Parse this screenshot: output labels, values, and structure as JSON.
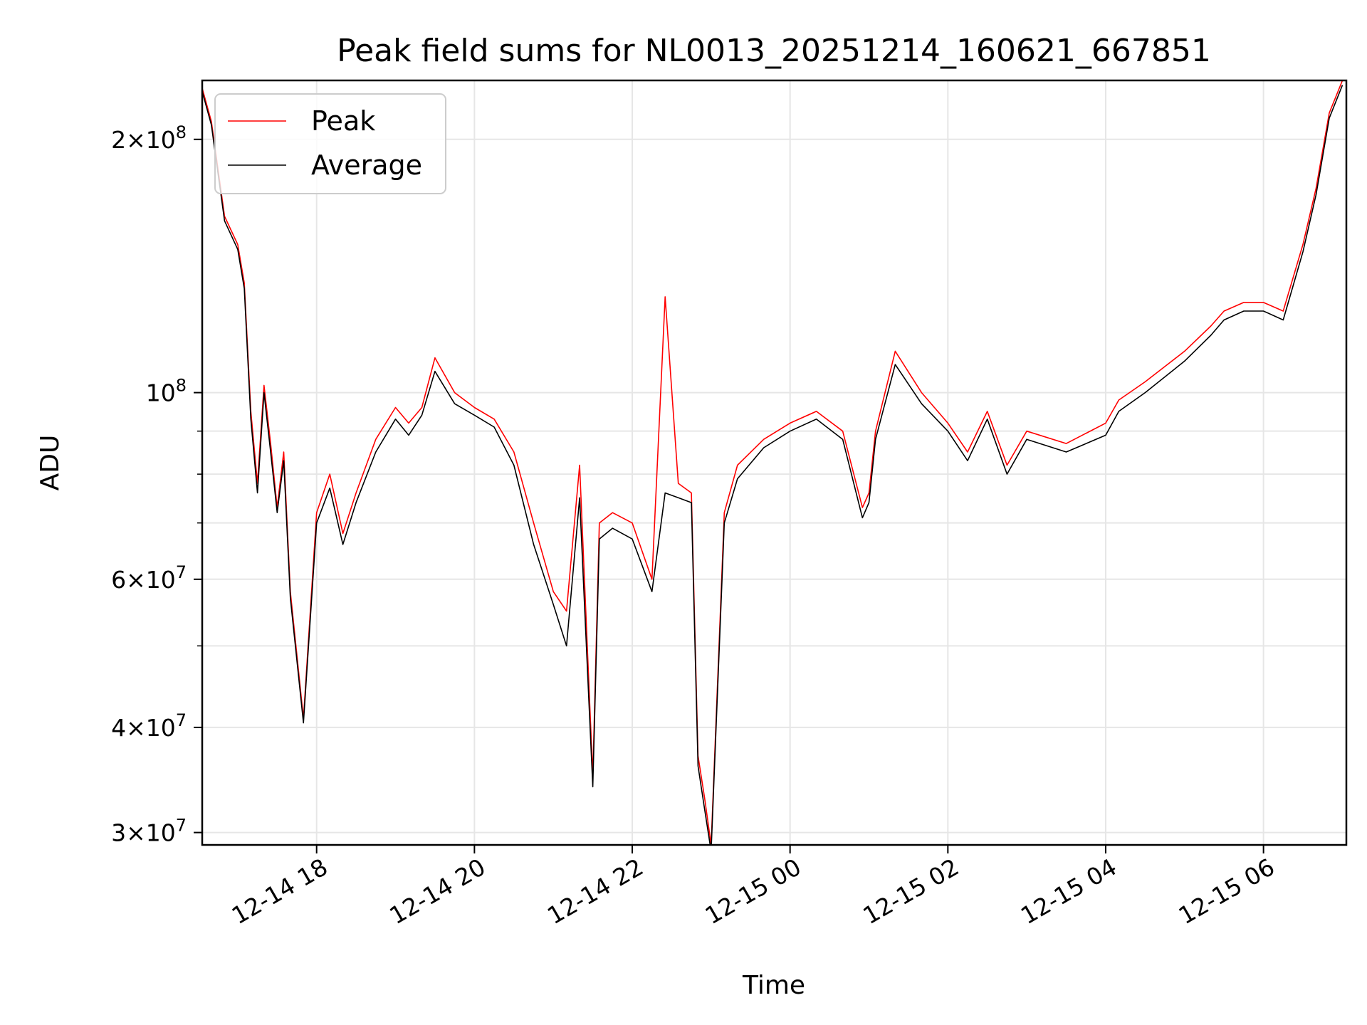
{
  "chart_data": {
    "type": "line",
    "title": "Peak field sums for NL0013_20251214_160621_667851",
    "xlabel": "Time",
    "ylabel": "ADU",
    "yscale": "log",
    "grid": true,
    "legend_position": "top-left",
    "xlim": [
      "2025-12-14 16:33",
      "2025-12-15 07:03"
    ],
    "ylim": [
      29000000,
      235000000
    ],
    "x_ticks": [
      "12-14 18",
      "12-14 20",
      "12-14 22",
      "12-15 00",
      "12-15 02",
      "12-15 04",
      "12-15 06"
    ],
    "x_tick_values": [
      "2025-12-14 18:00",
      "2025-12-14 20:00",
      "2025-12-14 22:00",
      "2025-12-15 00:00",
      "2025-12-15 02:00",
      "2025-12-15 04:00",
      "2025-12-15 06:00"
    ],
    "y_ticks": [
      {
        "value": 30000000,
        "mantissa": "3",
        "exp": "7"
      },
      {
        "value": 40000000,
        "mantissa": "4",
        "exp": "7"
      },
      {
        "value": 60000000,
        "mantissa": "6",
        "exp": "7"
      },
      {
        "value": 100000000,
        "mantissa": "",
        "exp": "8"
      },
      {
        "value": 200000000,
        "mantissa": "2",
        "exp": "8"
      }
    ],
    "y_minor_ticks": [
      50000000,
      70000000,
      80000000,
      90000000
    ],
    "x": [
      "2025-12-14 16:33",
      "2025-12-14 16:40",
      "2025-12-14 16:50",
      "2025-12-14 17:00",
      "2025-12-14 17:05",
      "2025-12-14 17:10",
      "2025-12-14 17:15",
      "2025-12-14 17:20",
      "2025-12-14 17:25",
      "2025-12-14 17:30",
      "2025-12-14 17:35",
      "2025-12-14 17:40",
      "2025-12-14 17:50",
      "2025-12-14 18:00",
      "2025-12-14 18:10",
      "2025-12-14 18:20",
      "2025-12-14 18:30",
      "2025-12-14 18:45",
      "2025-12-14 19:00",
      "2025-12-14 19:10",
      "2025-12-14 19:20",
      "2025-12-14 19:30",
      "2025-12-14 19:45",
      "2025-12-14 20:00",
      "2025-12-14 20:15",
      "2025-12-14 20:30",
      "2025-12-14 20:45",
      "2025-12-14 21:00",
      "2025-12-14 21:10",
      "2025-12-14 21:20",
      "2025-12-14 21:30",
      "2025-12-14 21:35",
      "2025-12-14 21:45",
      "2025-12-14 22:00",
      "2025-12-14 22:15",
      "2025-12-14 22:25",
      "2025-12-14 22:35",
      "2025-12-14 22:45",
      "2025-12-14 22:50",
      "2025-12-14 22:55",
      "2025-12-14 23:00",
      "2025-12-14 23:10",
      "2025-12-14 23:20",
      "2025-12-14 23:40",
      "2025-12-15 00:00",
      "2025-12-15 00:20",
      "2025-12-15 00:40",
      "2025-12-15 00:55",
      "2025-12-15 01:00",
      "2025-12-15 01:05",
      "2025-12-15 01:20",
      "2025-12-15 01:40",
      "2025-12-15 02:00",
      "2025-12-15 02:15",
      "2025-12-15 02:30",
      "2025-12-15 02:45",
      "2025-12-15 03:00",
      "2025-12-15 03:30",
      "2025-12-15 04:00",
      "2025-12-15 04:10",
      "2025-12-15 04:30",
      "2025-12-15 05:00",
      "2025-12-15 05:20",
      "2025-12-15 05:30",
      "2025-12-15 05:45",
      "2025-12-15 06:00",
      "2025-12-15 06:15",
      "2025-12-15 06:30",
      "2025-12-15 06:40",
      "2025-12-15 06:50",
      "2025-12-15 07:00"
    ],
    "series": [
      {
        "name": "Peak",
        "color": "#ff0000",
        "values": [
          230000000,
          210000000,
          162000000,
          150000000,
          135000000,
          95000000,
          78000000,
          102000000,
          87000000,
          73000000,
          85000000,
          58000000,
          41000000,
          72000000,
          80000000,
          68000000,
          76000000,
          88000000,
          96000000,
          92000000,
          96000000,
          110000000,
          100000000,
          96000000,
          93000000,
          85000000,
          70000000,
          58000000,
          55000000,
          82000000,
          35000000,
          70000000,
          72000000,
          70000000,
          60000000,
          130000000,
          78000000,
          76000000,
          37000000,
          33000000,
          29000000,
          72000000,
          82000000,
          88000000,
          92000000,
          95000000,
          90000000,
          73000000,
          76000000,
          90000000,
          112000000,
          100000000,
          92000000,
          85000000,
          95000000,
          82000000,
          90000000,
          87000000,
          92000000,
          98000000,
          103000000,
          112000000,
          120000000,
          125000000,
          128000000,
          128000000,
          125000000,
          150000000,
          175000000,
          215000000,
          235000000
        ]
      },
      {
        "name": "Average",
        "color": "#000000",
        "values": [
          228000000,
          208000000,
          160000000,
          148000000,
          133000000,
          93000000,
          76000000,
          100000000,
          85000000,
          72000000,
          83000000,
          57000000,
          40500000,
          70000000,
          77000000,
          66000000,
          74000000,
          85000000,
          93000000,
          89000000,
          94000000,
          106000000,
          97000000,
          94000000,
          91000000,
          82000000,
          66000000,
          56000000,
          50000000,
          75000000,
          34000000,
          67000000,
          69000000,
          67000000,
          58000000,
          76000000,
          75000000,
          74000000,
          36000000,
          32000000,
          28500000,
          70000000,
          79000000,
          86000000,
          90000000,
          93000000,
          88000000,
          71000000,
          74000000,
          88000000,
          108000000,
          97000000,
          90000000,
          83000000,
          93000000,
          80000000,
          88000000,
          85000000,
          89000000,
          95000000,
          100000000,
          109000000,
          117000000,
          122000000,
          125000000,
          125000000,
          122000000,
          147000000,
          172000000,
          212000000,
          232000000
        ]
      }
    ]
  }
}
